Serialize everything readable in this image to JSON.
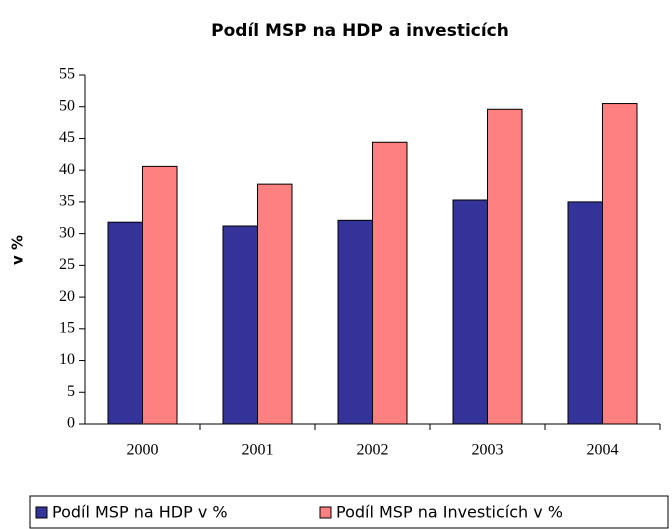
{
  "chart_data": {
    "type": "bar",
    "title": "Podíl MSP na HDP a investicích",
    "y_label": "v %",
    "categories": [
      "2000",
      "2001",
      "2002",
      "2003",
      "2004"
    ],
    "series": [
      {
        "name": "Podíl MSP na HDP v %",
        "color": "#333399",
        "values": [
          31.8,
          31.2,
          32.1,
          35.3,
          35.0
        ]
      },
      {
        "name": "Podíl MSP na Investicích v %",
        "color": "#ff8080",
        "values": [
          40.6,
          37.8,
          44.4,
          49.6,
          50.5
        ]
      }
    ],
    "ylim": [
      0,
      55
    ],
    "yticks": [
      0,
      5,
      10,
      15,
      20,
      25,
      30,
      35,
      40,
      45,
      50,
      55
    ],
    "grid": false,
    "legend": "bottom"
  }
}
